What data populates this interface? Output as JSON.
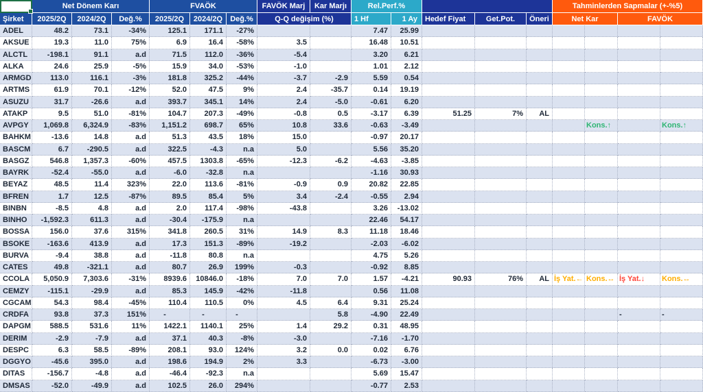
{
  "header": {
    "group_net_profit": "Net Dönem Karı",
    "group_ebitda": "FVAÖK",
    "group_ebitda_margin": "FAVÖK Marj",
    "group_profit_margin": "Kar Marjı",
    "group_rel_perf": "Rel.Perf.%",
    "group_deviations": "Tahminlerden Sapmalar (+-%5)",
    "col_company": "Şirket",
    "col_q2025": "2025/2Q",
    "col_q2024": "2024/2Q",
    "col_change": "Değ.%",
    "col_qq_change": "Q-Q değişim (%)",
    "col_1_week": "1 Hf",
    "col_1_month": "1 Ay",
    "col_target_price": "Hedef Fiyat",
    "col_potential": "Get.Pot.",
    "col_recommendation": "Öneri",
    "col_dev_net_profit": "Net Kar",
    "col_dev_ebitda": "FAVÖK"
  },
  "colors": {
    "header_blue": "#1E4FA1",
    "header_navy": "#1D3498",
    "header_cyan": "#2CA9C9",
    "header_orange": "#FF5A0D",
    "row_stripe": "#DBE2F0",
    "selection_green": "#1E7145",
    "dev_amber": "#FFAE00",
    "dev_green": "#2EB573",
    "dev_red": "#FF4438"
  },
  "rows": [
    {
      "ticker": "ADEL",
      "cells": [
        "48.2",
        "73.1",
        "-34%",
        "125.1",
        "171.1",
        "-27%",
        "",
        "",
        "7.47",
        "25.99",
        "",
        "",
        "",
        "",
        "",
        "",
        ""
      ]
    },
    {
      "ticker": "AKSUE",
      "cells": [
        "19.3",
        "11.0",
        "75%",
        "6.9",
        "16.4",
        "-58%",
        "3.5",
        "",
        "16.48",
        "10.51",
        "",
        "",
        "",
        "",
        "",
        "",
        ""
      ]
    },
    {
      "ticker": "ALCTL",
      "cells": [
        "-198.1",
        "91.1",
        "a.d",
        "71.5",
        "112.0",
        "-36%",
        "-5.4",
        "",
        "3.20",
        "6.21",
        "",
        "",
        "",
        "",
        "",
        "",
        ""
      ]
    },
    {
      "ticker": "ALKA",
      "cells": [
        "24.6",
        "25.9",
        "-5%",
        "15.9",
        "34.0",
        "-53%",
        "-1.0",
        "",
        "1.01",
        "2.12",
        "",
        "",
        "",
        "",
        "",
        "",
        ""
      ]
    },
    {
      "ticker": "ARMGD",
      "cells": [
        "113.0",
        "116.1",
        "-3%",
        "181.8",
        "325.2",
        "-44%",
        "-3.7",
        "-2.9",
        "5.59",
        "0.54",
        "",
        "",
        "",
        "",
        "",
        "",
        ""
      ]
    },
    {
      "ticker": "ARTMS",
      "cells": [
        "61.9",
        "70.1",
        "-12%",
        "52.0",
        "47.5",
        "9%",
        "2.4",
        "-35.7",
        "0.14",
        "19.19",
        "",
        "",
        "",
        "",
        "",
        "",
        ""
      ]
    },
    {
      "ticker": "ASUZU",
      "cells": [
        "31.7",
        "-26.6",
        "a.d",
        "393.7",
        "345.1",
        "14%",
        "2.4",
        "-5.0",
        "-0.61",
        "6.20",
        "",
        "",
        "",
        "",
        "",
        "",
        ""
      ]
    },
    {
      "ticker": "ATAKP",
      "cells": [
        "9.5",
        "51.0",
        "-81%",
        "104.7",
        "207.3",
        "-49%",
        "-0.8",
        "0.5",
        "-3.17",
        "6.39",
        "51.25",
        "7%",
        "AL",
        "",
        "",
        "",
        ""
      ]
    },
    {
      "ticker": "AVPGY",
      "cells": [
        "1,069.8",
        "6,324.9",
        "-83%",
        "1,151.2",
        "698.7",
        "65%",
        "10.8",
        "33.6",
        "-0.63",
        "-3.49",
        "",
        "",
        "",
        "",
        {
          "t": "Kons.↑",
          "c": "green"
        },
        "",
        {
          "t": "Kons.↑",
          "c": "green"
        }
      ]
    },
    {
      "ticker": "BAHKM",
      "cells": [
        "-13.6",
        "14.8",
        "a.d",
        "51.3",
        "43.5",
        "18%",
        "15.0",
        "",
        "-0.97",
        "20.17",
        "",
        "",
        "",
        "",
        "",
        "",
        ""
      ]
    },
    {
      "ticker": "BASCM",
      "cells": [
        "6.7",
        "-290.5",
        "a.d",
        "322.5",
        "-4.3",
        "n.a",
        "5.0",
        "",
        "5.56",
        "35.20",
        "",
        "",
        "",
        "",
        "",
        "",
        ""
      ]
    },
    {
      "ticker": "BASGZ",
      "cells": [
        "546.8",
        "1,357.3",
        "-60%",
        "457.5",
        "1303.8",
        "-65%",
        "-12.3",
        "-6.2",
        "-4.63",
        "-3.85",
        "",
        "",
        "",
        "",
        "",
        "",
        ""
      ]
    },
    {
      "ticker": "BAYRK",
      "cells": [
        "-52.4",
        "-55.0",
        "a.d",
        "-6.0",
        "-32.8",
        "n.a",
        "",
        "",
        "-1.16",
        "30.93",
        "",
        "",
        "",
        "",
        "",
        "",
        ""
      ]
    },
    {
      "ticker": "BEYAZ",
      "cells": [
        "48.5",
        "11.4",
        "323%",
        "22.0",
        "113.6",
        "-81%",
        "-0.9",
        "0.9",
        "20.82",
        "22.85",
        "",
        "",
        "",
        "",
        "",
        "",
        ""
      ]
    },
    {
      "ticker": "BFREN",
      "cells": [
        "1.7",
        "12.5",
        "-87%",
        "89.5",
        "85.4",
        "5%",
        "3.4",
        "-2.4",
        "-0.55",
        "2.94",
        "",
        "",
        "",
        "",
        "",
        "",
        ""
      ]
    },
    {
      "ticker": "BINBN",
      "cells": [
        "-8.5",
        "4.8",
        "a.d",
        "2.0",
        "117.4",
        "-98%",
        "-43.8",
        "",
        "3.26",
        "-13.02",
        "",
        "",
        "",
        "",
        "",
        "",
        ""
      ]
    },
    {
      "ticker": "BINHO",
      "cells": [
        "-1,592.3",
        "611.3",
        "a.d",
        "-30.4",
        "-175.9",
        "n.a",
        "",
        "",
        "22.46",
        "54.17",
        "",
        "",
        "",
        "",
        "",
        "",
        ""
      ]
    },
    {
      "ticker": "BOSSA",
      "cells": [
        "156.0",
        "37.6",
        "315%",
        "341.8",
        "260.5",
        "31%",
        "14.9",
        "8.3",
        "11.18",
        "18.46",
        "",
        "",
        "",
        "",
        "",
        "",
        ""
      ]
    },
    {
      "ticker": "BSOKE",
      "cells": [
        "-163.6",
        "413.9",
        "a.d",
        "17.3",
        "151.3",
        "-89%",
        "-19.2",
        "",
        "-2.03",
        "-6.02",
        "",
        "",
        "",
        "",
        "",
        "",
        ""
      ]
    },
    {
      "ticker": "BURVA",
      "cells": [
        "-9.4",
        "38.8",
        "a.d",
        "-11.8",
        "80.8",
        "n.a",
        "",
        "",
        "4.75",
        "5.26",
        "",
        "",
        "",
        "",
        "",
        "",
        ""
      ]
    },
    {
      "ticker": "CATES",
      "cells": [
        "49.8",
        "-321.1",
        "a.d",
        "80.7",
        "26.9",
        "199%",
        "-0.3",
        "",
        "-0.92",
        "8.85",
        "",
        "",
        "",
        "",
        "",
        "",
        ""
      ]
    },
    {
      "ticker": "CCOLA",
      "cells": [
        "5,050.9",
        "7,303.6",
        "-31%",
        "8939.6",
        "10846.0",
        "-18%",
        "7.0",
        "7.0",
        "1.57",
        "-4.21",
        "90.93",
        "76%",
        "AL",
        {
          "t": "İş Yat.←",
          "c": "amber"
        },
        {
          "t": "Kons.↔",
          "c": "amber"
        },
        {
          "t": "İş Yat.↓",
          "c": "red"
        },
        {
          "t": "Kons.↔",
          "c": "amber"
        }
      ]
    },
    {
      "ticker": "CEMZY",
      "cells": [
        "-115.1",
        "-29.9",
        "a.d",
        "85.3",
        "145.9",
        "-42%",
        "-11.8",
        "",
        "0.56",
        "11.08",
        "",
        "",
        "",
        "",
        "",
        "",
        ""
      ]
    },
    {
      "ticker": "CGCAM",
      "cells": [
        "54.3",
        "98.4",
        "-45%",
        "110.4",
        "110.5",
        "0%",
        "4.5",
        "6.4",
        "9.31",
        "25.24",
        "",
        "",
        "",
        "",
        "",
        "",
        ""
      ]
    },
    {
      "ticker": "CRDFA",
      "cells": [
        "93.8",
        "37.3",
        "151%",
        "-",
        "-",
        "-",
        "",
        "5.8",
        "-4.90",
        "22.49",
        "",
        "",
        "",
        "",
        "",
        "-",
        "-"
      ]
    },
    {
      "ticker": "DAPGM",
      "cells": [
        "588.5",
        "531.6",
        "11%",
        "1422.1",
        "1140.1",
        "25%",
        "1.4",
        "29.2",
        "0.31",
        "48.95",
        "",
        "",
        "",
        "",
        "",
        "",
        ""
      ]
    },
    {
      "ticker": "DERIM",
      "cells": [
        "-2.9",
        "-7.9",
        "a.d",
        "37.1",
        "40.3",
        "-8%",
        "-3.0",
        "",
        "-7.16",
        "-1.70",
        "",
        "",
        "",
        "",
        "",
        "",
        ""
      ]
    },
    {
      "ticker": "DESPC",
      "cells": [
        "6.3",
        "58.5",
        "-89%",
        "208.1",
        "93.0",
        "124%",
        "3.2",
        "0.0",
        "0.02",
        "6.76",
        "",
        "",
        "",
        "",
        "",
        "",
        ""
      ]
    },
    {
      "ticker": "DGGYO",
      "cells": [
        "-45.6",
        "395.0",
        "a.d",
        "198.6",
        "194.9",
        "2%",
        "3.3",
        "",
        "-6.73",
        "-3.00",
        "",
        "",
        "",
        "",
        "",
        "",
        ""
      ]
    },
    {
      "ticker": "DITAS",
      "cells": [
        "-156.7",
        "-4.8",
        "a.d",
        "-46.4",
        "-92.3",
        "n.a",
        "",
        "",
        "5.69",
        "15.47",
        "",
        "",
        "",
        "",
        "",
        "",
        ""
      ]
    },
    {
      "ticker": "DMSAS",
      "cells": [
        "-52.0",
        "-49.9",
        "a.d",
        "102.5",
        "26.0",
        "294%",
        "",
        "",
        "-0.77",
        "2.53",
        "",
        "",
        "",
        "",
        "",
        "",
        ""
      ]
    }
  ]
}
